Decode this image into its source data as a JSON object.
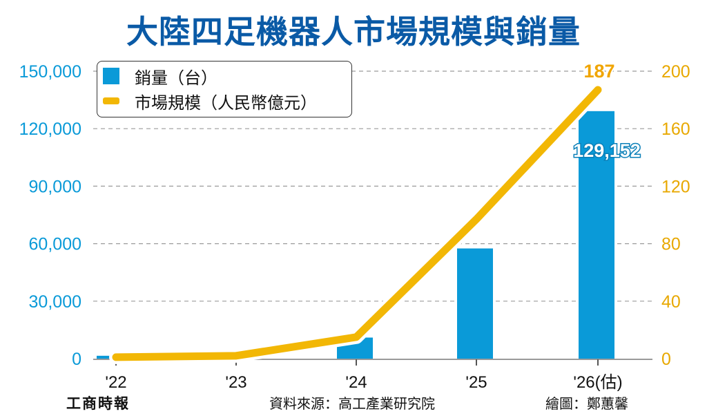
{
  "title": "大陸四足機器人市場規模與銷量",
  "chart_data": {
    "type": "bar+line",
    "categories": [
      "'22",
      "'23",
      "'24",
      "'25",
      "'26(估)"
    ],
    "series": [
      {
        "name": "銷量（台）",
        "type": "bar",
        "axis": "left",
        "color": "#0a9ad8",
        "values": [
          1500,
          2800,
          11000,
          57500,
          129152
        ],
        "labeled_value": "129,152"
      },
      {
        "name": "市場規模（人民幣億元）",
        "type": "line",
        "axis": "right",
        "color": "#f2b705",
        "values": [
          1,
          2,
          15,
          97,
          187
        ],
        "labeled_value": "187"
      }
    ],
    "y_left": {
      "ticks": [
        "0",
        "30,000",
        "60,000",
        "90,000",
        "120,000",
        "150,000"
      ],
      "ylim": [
        0,
        150000
      ],
      "color": "#0a9ad8"
    },
    "y_right": {
      "ticks": [
        "0",
        "40",
        "80",
        "120",
        "160",
        "200"
      ],
      "ylim": [
        0,
        200
      ],
      "color": "#e8a800"
    },
    "grid": "horizontal dashed",
    "legend_position": "top-left"
  },
  "footer": {
    "logo": "工商時報",
    "source": "資料來源：高工產業研究院",
    "credit": "繪圖：鄭蕙馨"
  }
}
